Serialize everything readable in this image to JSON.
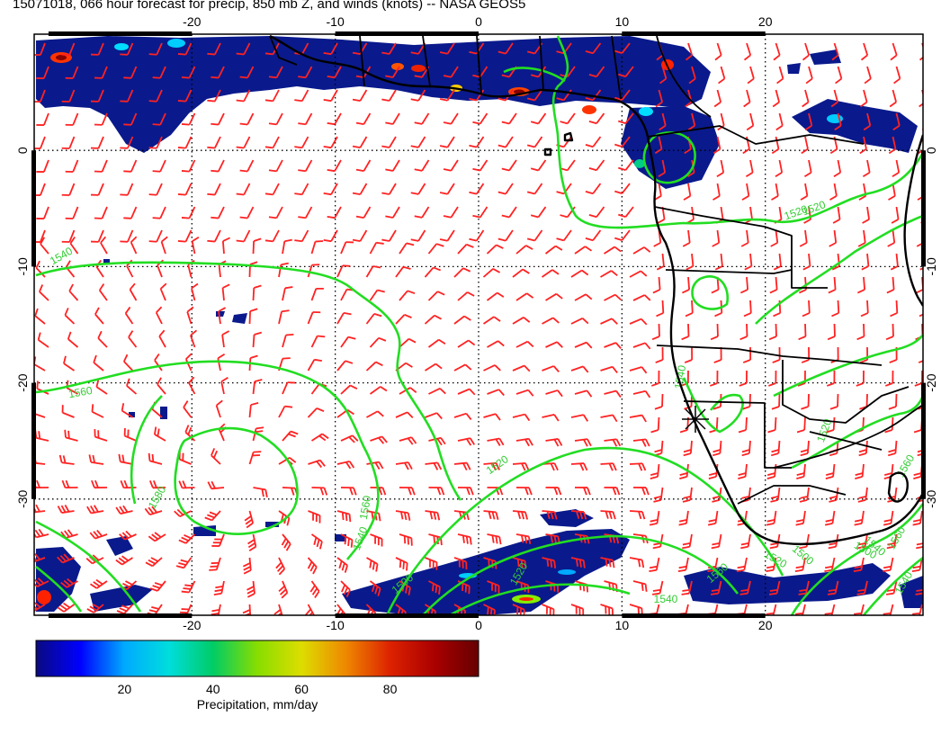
{
  "title": "15071018, 066 hour forecast for precip, 850 mb Z, and winds (knots) -- NASA GEOS5",
  "map": {
    "lon_range": [
      -31,
      31
    ],
    "lat_range": [
      -40,
      10
    ],
    "lon_ticks": [
      "-20",
      "-10",
      "0",
      "10",
      "20"
    ],
    "lat_ticks": [
      "0",
      "-10",
      "-20",
      "-30"
    ],
    "gridlines": "dotted",
    "colors": {
      "precip_low": "#0a1a8c",
      "contour": "#22dd22",
      "wind_barb": "#ff2222",
      "coastline": "#000000",
      "grid": "#000000"
    },
    "contour_labels": [
      "1540",
      "1560",
      "1580",
      "1560",
      "1540",
      "1520",
      "1520",
      "1500",
      "1540",
      "1560",
      "1520",
      "1500",
      "1520",
      "1560",
      "1540",
      "1540",
      "1520",
      "1540",
      "1560",
      "1520",
      "1500"
    ],
    "marker": "star",
    "marker_location": [
      15,
      -23
    ]
  },
  "colorbar": {
    "title": "Precipitation, mm/day",
    "ticks": [
      "20",
      "40",
      "60",
      "80"
    ],
    "tick_values": [
      20,
      40,
      60,
      80
    ],
    "range": [
      0,
      100
    ],
    "colors": [
      "#0a0a80",
      "#0000ff",
      "#00aaff",
      "#00dddd",
      "#00cc66",
      "#88dd00",
      "#dddd00",
      "#ee8800",
      "#dd2200",
      "#aa0000",
      "#660000"
    ]
  }
}
